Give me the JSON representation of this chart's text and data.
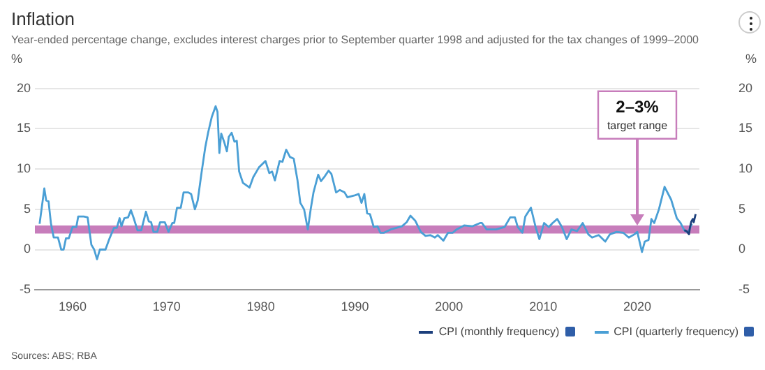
{
  "chart_data": {
    "type": "line",
    "title": "Inflation",
    "subtitle": "Year-ended percentage change, excludes interest charges prior to September quarter 1998 and adjusted for the tax changes of 1999–2000",
    "ylabel": "%",
    "y2label": "%",
    "xlim": [
      1956,
      2026.6
    ],
    "xticks": [
      1960,
      1970,
      1980,
      1990,
      2000,
      2010,
      2020
    ],
    "ylim": [
      -5,
      20
    ],
    "yticks": [
      -5,
      0,
      5,
      10,
      15,
      20
    ],
    "y2lim": [
      -5,
      20
    ],
    "y2ticks": [
      -5,
      0,
      5,
      10,
      15,
      20
    ],
    "grid": "y",
    "legend": "bottom right",
    "marker": "none",
    "line_style": "solid",
    "bands": [
      {
        "axis": "y",
        "from": 2,
        "to": 3,
        "label": "2–3% target range",
        "color": "#c77dbb"
      }
    ],
    "annotations": [
      "Sources: ABS; RBA"
    ],
    "series": [
      {
        "name": "CPI (monthly frequency)",
        "color": "#1c3f7c",
        "x": [
          2025.0,
          2025.25,
          2025.5,
          2025.6,
          2025.75,
          2025.9,
          2026.0,
          2026.2
        ],
        "values": [
          2.4,
          2.3,
          1.9,
          2.8,
          3.5,
          3.8,
          3.4,
          4.4
        ]
      },
      {
        "name": "CPI (quarterly frequency)",
        "color": "#4a9fd5",
        "x": [
          1956.5,
          1957.0,
          1957.2,
          1957.45,
          1957.7,
          1958.0,
          1958.45,
          1958.8,
          1959.05,
          1959.3,
          1959.6,
          1960.0,
          1960.4,
          1960.6,
          1961.2,
          1961.6,
          1962.0,
          1962.3,
          1962.6,
          1962.9,
          1963.5,
          1963.9,
          1964.4,
          1964.7,
          1965.0,
          1965.2,
          1965.5,
          1965.9,
          1966.2,
          1966.5,
          1966.9,
          1967.3,
          1967.8,
          1968.1,
          1968.35,
          1968.6,
          1969.0,
          1969.3,
          1969.8,
          1970.2,
          1970.6,
          1970.8,
          1971.1,
          1971.5,
          1971.8,
          1972.3,
          1972.6,
          1973.0,
          1973.3,
          1973.7,
          1974.1,
          1974.4,
          1974.8,
          1975.2,
          1975.4,
          1975.6,
          1975.8,
          1976.1,
          1976.4,
          1976.6,
          1976.9,
          1977.2,
          1977.45,
          1977.7,
          1978.1,
          1978.8,
          1979.2,
          1979.8,
          1980.5,
          1980.9,
          1981.2,
          1981.5,
          1982.0,
          1982.3,
          1982.7,
          1983.1,
          1983.5,
          1983.9,
          1984.2,
          1984.6,
          1985.0,
          1985.3,
          1985.6,
          1986.1,
          1986.4,
          1986.8,
          1987.2,
          1987.5,
          1988.0,
          1988.4,
          1988.9,
          1989.2,
          1989.9,
          1990.4,
          1990.7,
          1991.0,
          1991.3,
          1991.6,
          1992.0,
          1992.4,
          1992.7,
          1993.1,
          1993.8,
          1995.0,
          1995.5,
          1995.9,
          1996.4,
          1997.0,
          1997.5,
          1998.0,
          1998.5,
          1998.8,
          1999.4,
          1999.9,
          2000.4,
          2000.8,
          2001.6,
          2002.5,
          2003.3,
          2003.5,
          2004.0,
          2005.0,
          2005.9,
          2006.5,
          2007.0,
          2007.3,
          2007.8,
          2008.1,
          2008.7,
          2009.2,
          2009.6,
          2010.1,
          2010.6,
          2011.0,
          2011.5,
          2012.0,
          2012.5,
          2013.0,
          2013.6,
          2014.2,
          2014.8,
          2015.2,
          2015.9,
          2016.6,
          2017.1,
          2017.8,
          2018.5,
          2019.1,
          2019.7,
          2020.0,
          2020.5,
          2020.8,
          2021.2,
          2021.5,
          2021.8,
          2022.3,
          2022.9,
          2023.6,
          2024.2,
          2024.6,
          2025.0,
          2025.4,
          2025.8
        ],
        "values": [
          3.2,
          7.6,
          6.1,
          6.0,
          3.3,
          1.5,
          1.5,
          0,
          0,
          1.4,
          1.4,
          2.8,
          2.8,
          4.1,
          4.1,
          4.0,
          0.6,
          0,
          -1.2,
          0,
          0,
          1.3,
          2.7,
          2.7,
          3.9,
          2.9,
          3.9,
          4.0,
          4.9,
          3.9,
          2.4,
          2.4,
          4.7,
          3.5,
          3.4,
          2.2,
          2.2,
          3.4,
          3.4,
          2.2,
          3.3,
          3.3,
          5.2,
          5.2,
          7.1,
          7.1,
          6.9,
          5.0,
          6.1,
          9.5,
          12.7,
          14.5,
          16.5,
          17.8,
          17.1,
          12.0,
          14.4,
          13.4,
          12.2,
          14.0,
          14.5,
          13.4,
          13.5,
          9.7,
          8.3,
          7.7,
          9.0,
          10.2,
          11.0,
          9.5,
          9.7,
          8.6,
          11.0,
          10.9,
          12.4,
          11.5,
          11.3,
          8.6,
          5.8,
          5.0,
          2.5,
          5.0,
          7.1,
          9.3,
          8.5,
          9.1,
          9.8,
          9.4,
          7.1,
          7.4,
          7.1,
          6.5,
          6.7,
          6.9,
          5.8,
          6.9,
          4.5,
          4.4,
          2.8,
          2.9,
          2.1,
          2.1,
          2.5,
          2.9,
          3.4,
          4.2,
          3.6,
          2.2,
          1.7,
          1.8,
          1.5,
          1.8,
          1.1,
          2.1,
          2.1,
          2.5,
          3.0,
          2.9,
          3.3,
          3.3,
          2.5,
          2.5,
          2.8,
          4.0,
          4.0,
          2.8,
          2.1,
          4.1,
          5.2,
          2.8,
          1.3,
          3.3,
          2.8,
          3.3,
          3.8,
          2.8,
          1.3,
          2.5,
          2.3,
          3.3,
          1.9,
          1.5,
          1.8,
          1.0,
          1.9,
          2.2,
          2.1,
          1.5,
          1.9,
          2.2,
          -0.3,
          1.0,
          1.2,
          3.8,
          3.3,
          5.0,
          7.8,
          6.2,
          3.9,
          3.3,
          2.4,
          2.1,
          3.2
        ]
      }
    ]
  }
}
